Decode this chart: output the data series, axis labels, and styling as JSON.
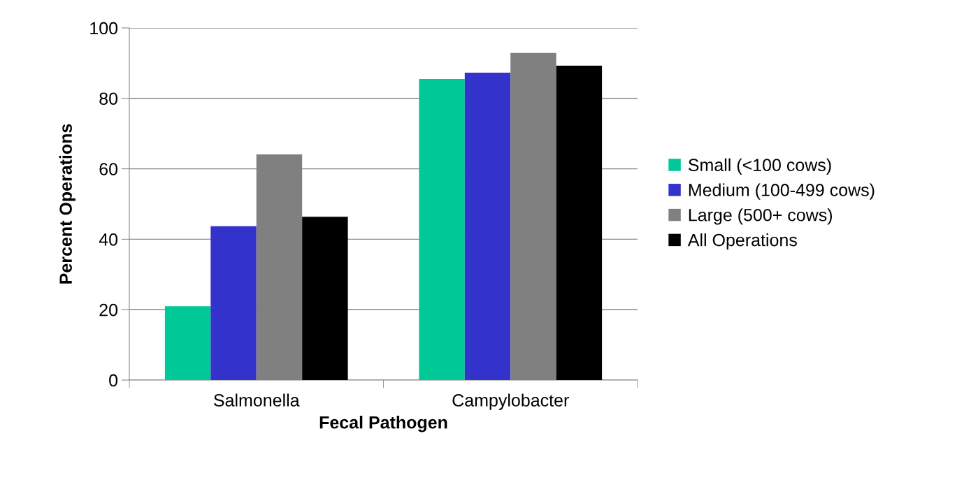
{
  "chart_data": {
    "type": "bar",
    "xlabel": "Fecal Pathogen",
    "ylabel": "Percent Operations",
    "categories": [
      "Salmonella",
      "Campylobacter"
    ],
    "series": [
      {
        "name": "Small (<100 cows)",
        "color": "#00c896",
        "values": [
          21.0,
          85.5
        ]
      },
      {
        "name": "Medium (100-499 cows)",
        "color": "#3333cc",
        "values": [
          43.7,
          87.3
        ]
      },
      {
        "name": "Large (500+ cows)",
        "color": "#808080",
        "values": [
          64.1,
          92.9
        ]
      },
      {
        "name": "All Operations",
        "color": "#000000",
        "values": [
          46.4,
          89.3
        ]
      }
    ],
    "ylim": [
      0,
      100
    ],
    "yticks": [
      0,
      20,
      40,
      60,
      80,
      100
    ],
    "grid": "y",
    "legend": "right"
  }
}
